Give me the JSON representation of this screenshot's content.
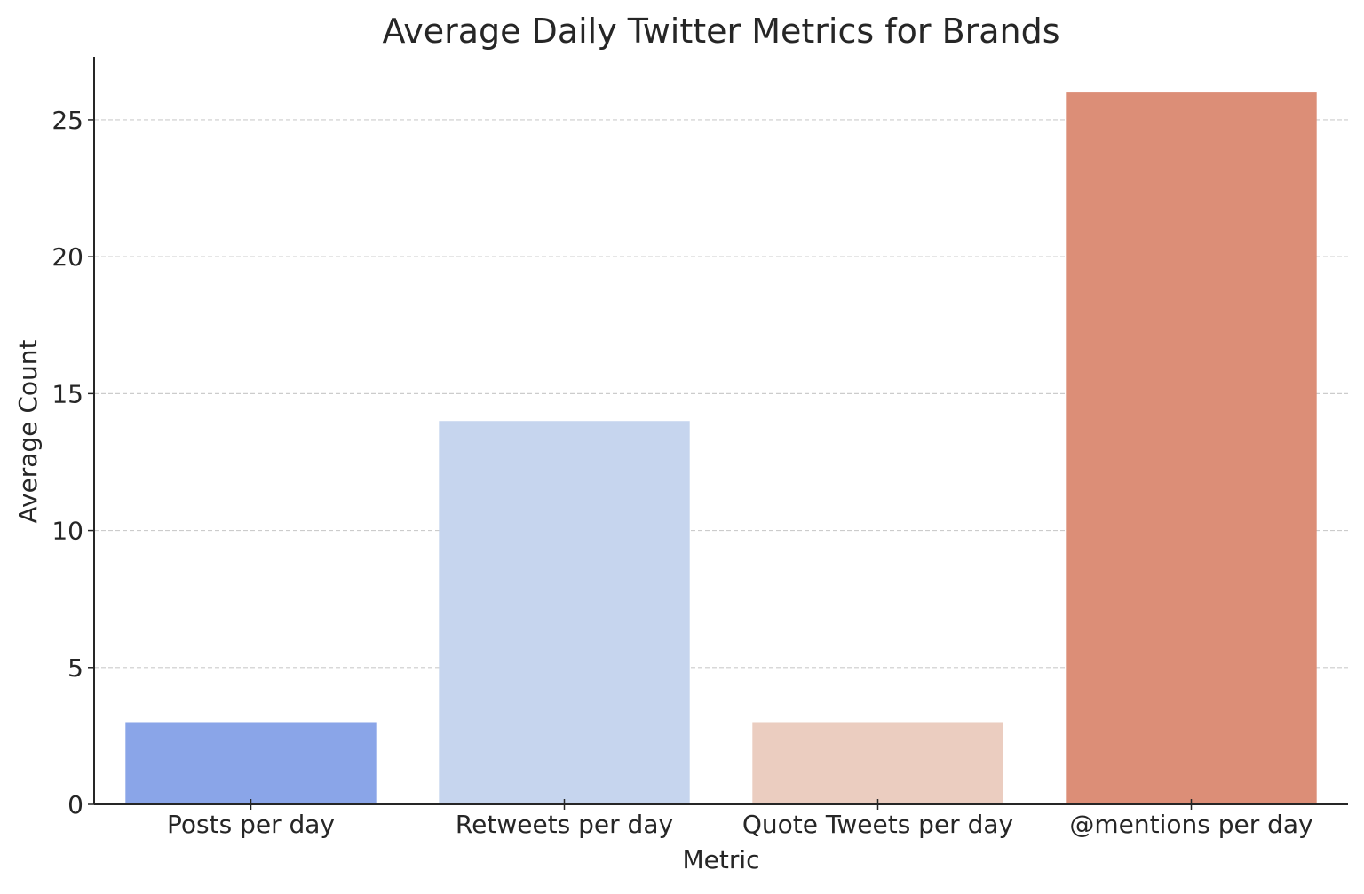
{
  "chart_data": {
    "type": "bar",
    "title": "Average Daily Twitter Metrics for Brands",
    "xlabel": "Metric",
    "ylabel": "Average Count",
    "categories": [
      "Posts per day",
      "Retweets per day",
      "Quote Tweets per day",
      "@mentions per day"
    ],
    "values": [
      3,
      14,
      3,
      26
    ],
    "colors": [
      "#8aa5e8",
      "#c6d5ee",
      "#ebcdc0",
      "#dc8e77"
    ],
    "ylim": [
      0,
      27.3
    ],
    "yticks": [
      0,
      5,
      10,
      15,
      20,
      25
    ],
    "grid": "y, dashed",
    "legend": "none"
  }
}
